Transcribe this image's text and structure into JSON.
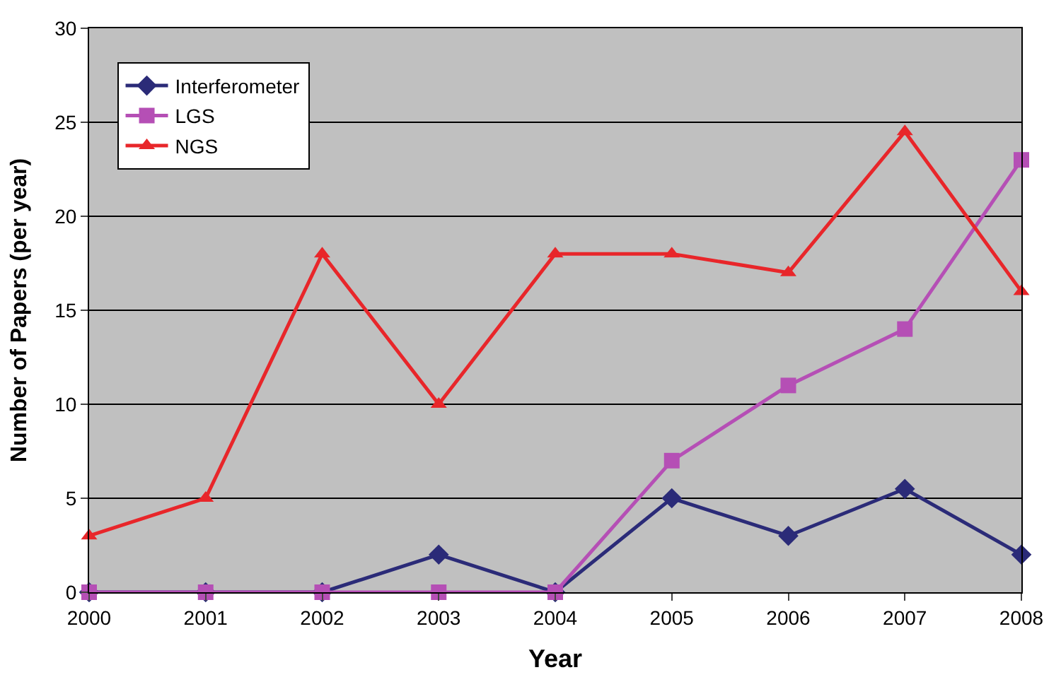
{
  "chart_data": {
    "type": "line",
    "xlabel": "Year",
    "ylabel": "Number of Papers (per year)",
    "x": [
      2000,
      2001,
      2002,
      2003,
      2004,
      2005,
      2006,
      2007,
      2008
    ],
    "series": [
      {
        "name": "Interferometer",
        "color": "#2b2b78",
        "marker": "diamond",
        "values": [
          0,
          0,
          0,
          2,
          0,
          5,
          3,
          5.5,
          2
        ]
      },
      {
        "name": "LGS",
        "color": "#b54fb5",
        "marker": "square",
        "values": [
          0,
          0,
          0,
          0,
          0,
          7,
          11,
          14,
          23
        ]
      },
      {
        "name": "NGS",
        "color": "#e8262a",
        "marker": "triangle",
        "values": [
          3,
          5,
          18,
          10,
          18,
          18,
          17,
          24.5,
          16
        ]
      }
    ],
    "xlim": [
      2000,
      2008
    ],
    "xticks": [
      2000,
      2001,
      2002,
      2003,
      2004,
      2005,
      2006,
      2007,
      2008
    ],
    "ylim": [
      0,
      30
    ],
    "yticks": [
      0,
      5,
      10,
      15,
      20,
      25,
      30
    ],
    "grid": "y",
    "legend": "top left",
    "line_style": "solid"
  }
}
